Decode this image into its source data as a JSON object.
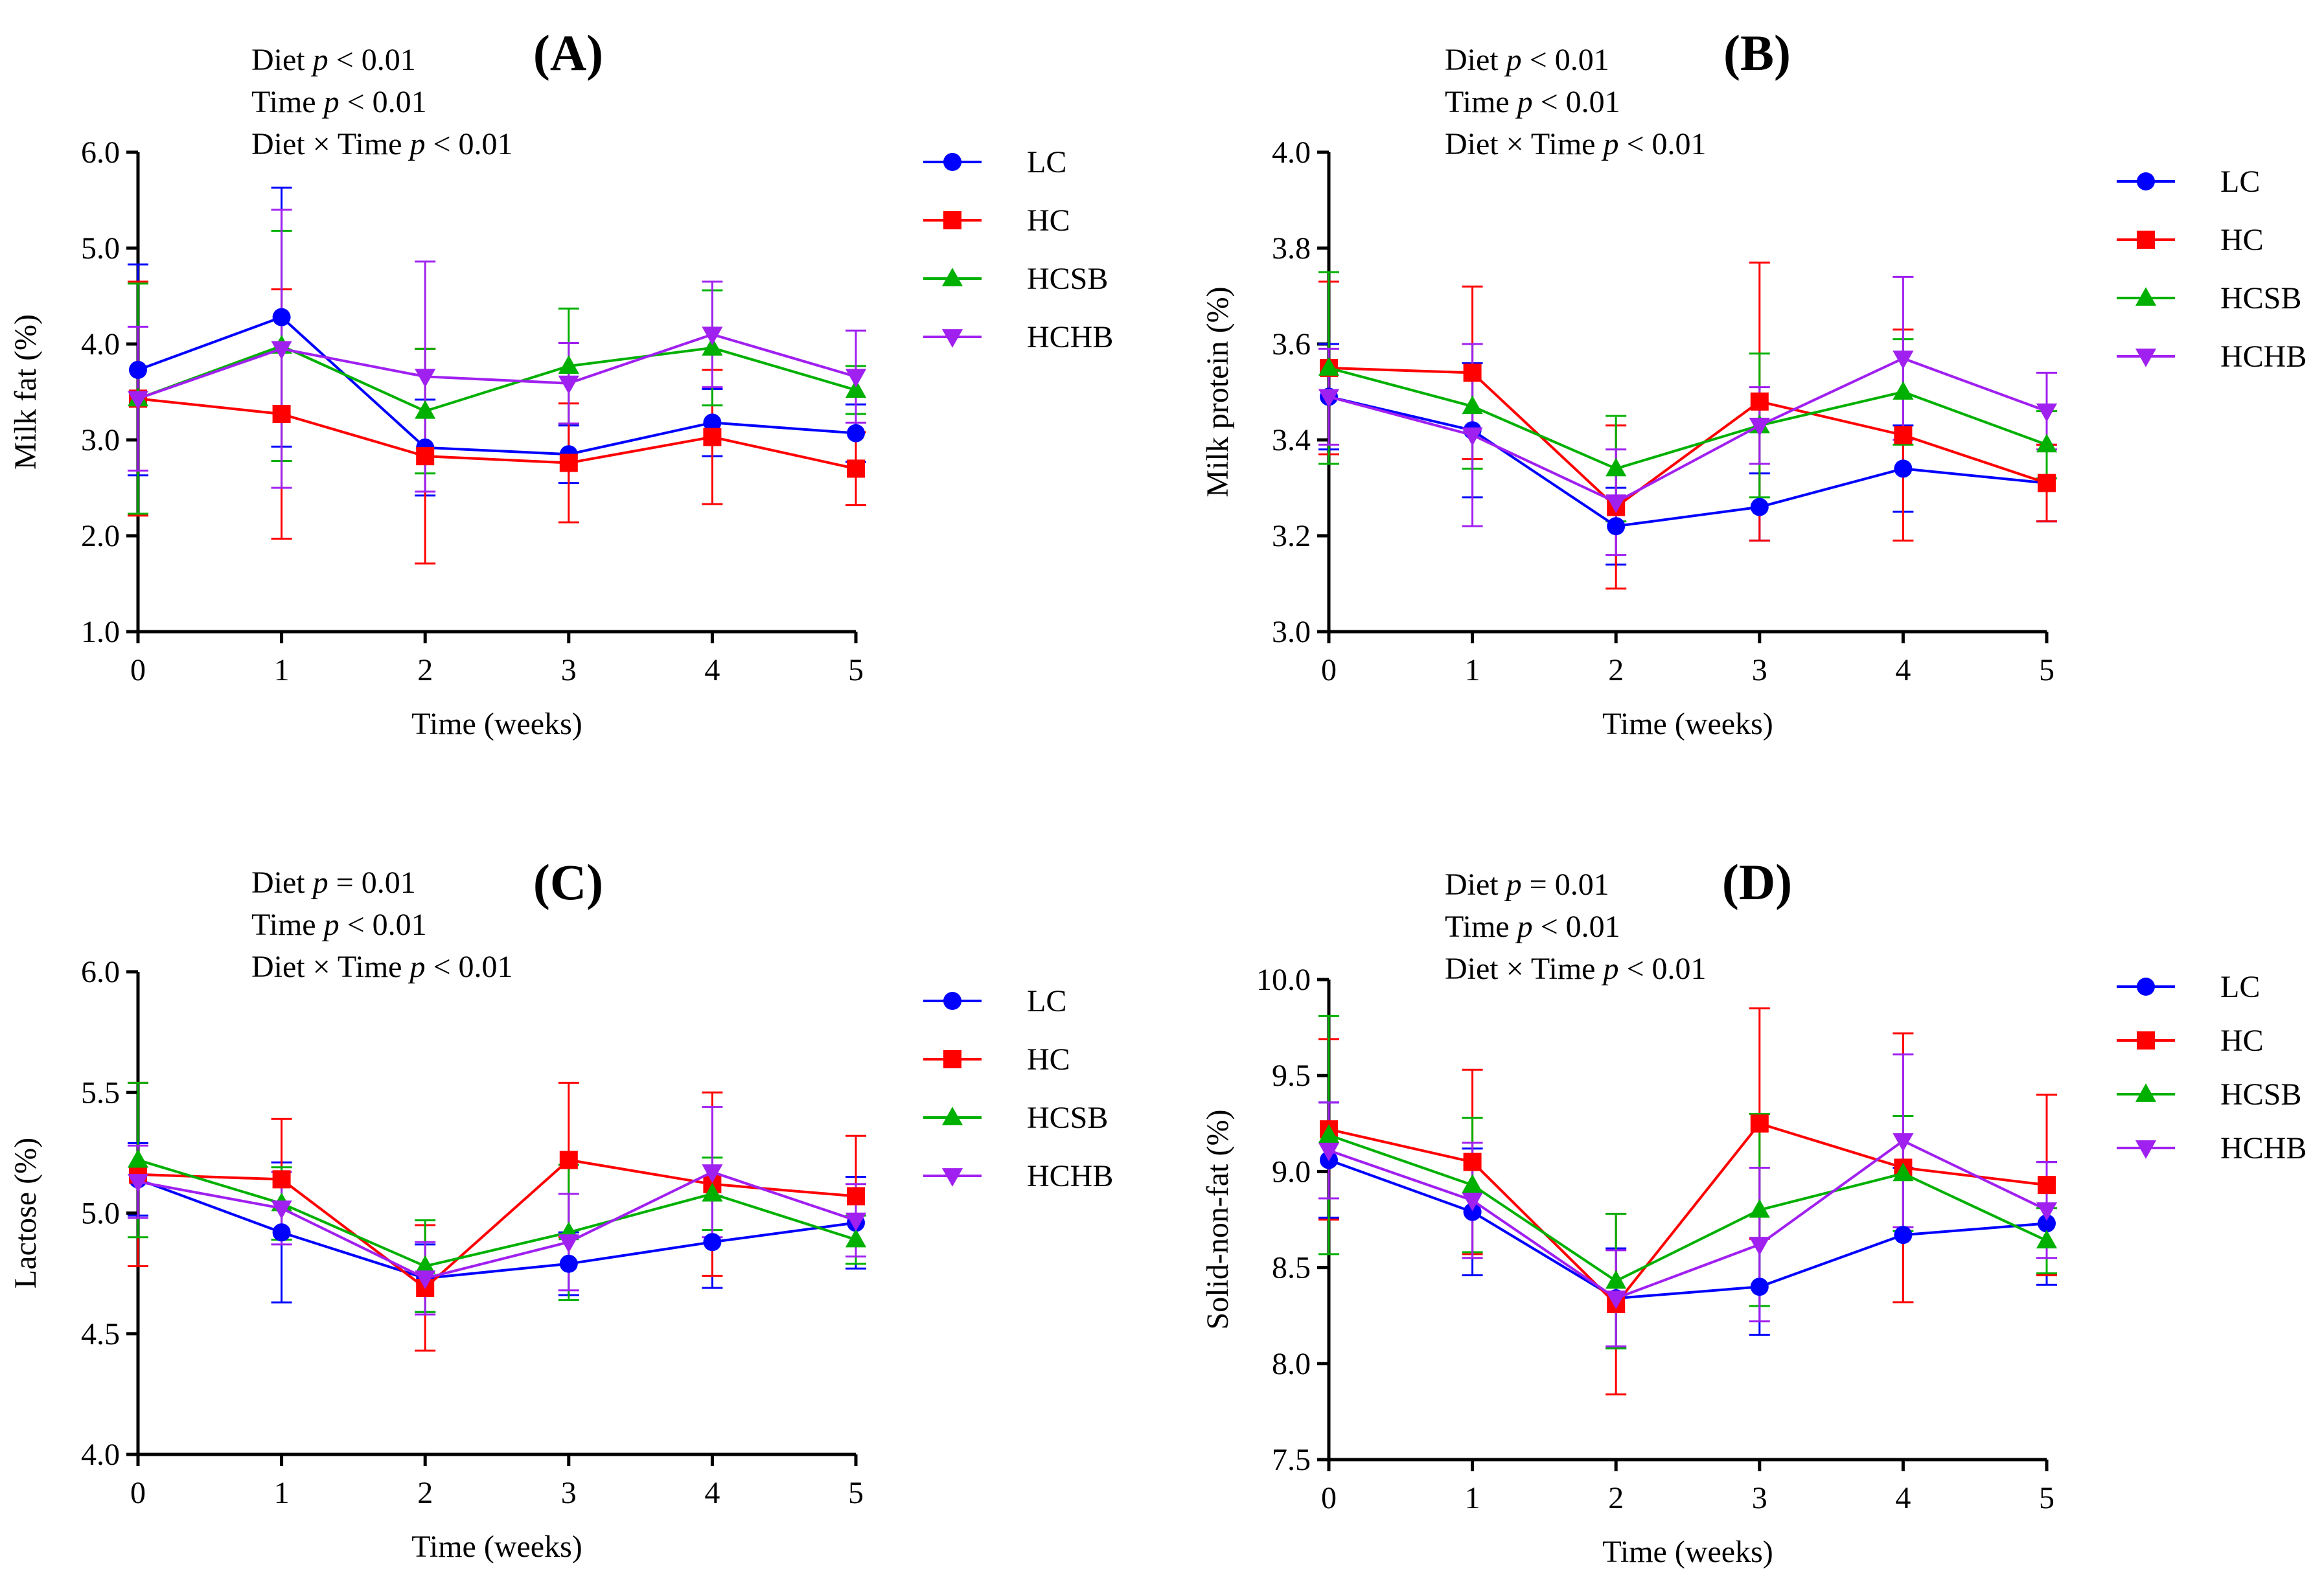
{
  "figure": {
    "colors": {
      "LC": "#0000ff",
      "HC": "#ff0000",
      "HCSB": "#00b000",
      "HCHB": "#a020f0"
    }
  },
  "chart_data": [
    {
      "panel": "(A)",
      "type": "line",
      "stats": [
        {
          "label": "Diet",
          "op": "< 0.01"
        },
        {
          "label": "Time",
          "op": "< 0.01"
        },
        {
          "label": "Diet × Time",
          "op": "< 0.01"
        }
      ],
      "xlabel": "Time (weeks)",
      "ylabel": "Milk fat (%)",
      "x": [
        0,
        1,
        2,
        3,
        4,
        5
      ],
      "xticks": [
        "0",
        "1",
        "2",
        "3",
        "4",
        "5"
      ],
      "ylim": [
        1.0,
        6.0
      ],
      "yticks": [
        "1.0",
        "2.0",
        "3.0",
        "4.0",
        "5.0",
        "6.0"
      ],
      "legend": [
        "LC",
        "HC",
        "HCSB",
        "HCHB"
      ],
      "series": [
        {
          "name": "LC",
          "marker": "circle",
          "values": [
            3.73,
            4.28,
            2.92,
            2.85,
            3.18,
            3.07
          ],
          "errors": [
            1.1,
            1.35,
            0.5,
            0.3,
            0.35,
            0.3
          ]
        },
        {
          "name": "HC",
          "marker": "square",
          "values": [
            3.43,
            3.27,
            2.83,
            2.76,
            3.03,
            2.7
          ],
          "errors": [
            1.22,
            1.3,
            1.12,
            0.62,
            0.7,
            0.38
          ]
        },
        {
          "name": "HCSB",
          "marker": "triangle-up",
          "values": [
            3.43,
            3.98,
            3.3,
            3.77,
            3.96,
            3.52
          ],
          "errors": [
            1.2,
            1.2,
            0.65,
            0.6,
            0.6,
            0.25
          ]
        },
        {
          "name": "HCHB",
          "marker": "triangle-down",
          "values": [
            3.43,
            3.95,
            3.66,
            3.59,
            4.1,
            3.66
          ],
          "errors": [
            0.75,
            1.45,
            1.2,
            0.42,
            0.55,
            0.48
          ]
        }
      ]
    },
    {
      "panel": "(B)",
      "type": "line",
      "stats": [
        {
          "label": "Diet",
          "op": "< 0.01"
        },
        {
          "label": "Time",
          "op": "< 0.01"
        },
        {
          "label": "Diet × Time",
          "op": "< 0.01"
        }
      ],
      "xlabel": "Time (weeks)",
      "ylabel": "Milk protein (%)",
      "x": [
        0,
        1,
        2,
        3,
        4,
        5
      ],
      "xticks": [
        "0",
        "1",
        "2",
        "3",
        "4",
        "5"
      ],
      "ylim": [
        3.0,
        4.0
      ],
      "yticks": [
        "3.0",
        "3.2",
        "3.4",
        "3.6",
        "3.8",
        "4.0"
      ],
      "legend": [
        "LC",
        "HC",
        "HCSB",
        "HCHB"
      ],
      "series": [
        {
          "name": "LC",
          "marker": "circle",
          "values": [
            3.49,
            3.42,
            3.22,
            3.26,
            3.34,
            3.31
          ],
          "errors": [
            0.11,
            0.14,
            0.08,
            0.07,
            0.09,
            0.08
          ]
        },
        {
          "name": "HC",
          "marker": "square",
          "values": [
            3.55,
            3.54,
            3.26,
            3.48,
            3.41,
            3.31
          ],
          "errors": [
            0.18,
            0.18,
            0.17,
            0.29,
            0.22,
            0.08
          ]
        },
        {
          "name": "HCSB",
          "marker": "triangle-up",
          "values": [
            3.55,
            3.47,
            3.34,
            3.43,
            3.5,
            3.39
          ],
          "errors": [
            0.2,
            0.13,
            0.11,
            0.15,
            0.11,
            0.07
          ]
        },
        {
          "name": "HCHB",
          "marker": "triangle-down",
          "values": [
            3.49,
            3.41,
            3.27,
            3.43,
            3.57,
            3.46
          ],
          "errors": [
            0.1,
            0.19,
            0.11,
            0.08,
            0.17,
            0.08
          ]
        }
      ]
    },
    {
      "panel": "(C)",
      "type": "line",
      "stats": [
        {
          "label": "Diet",
          "op": "= 0.01"
        },
        {
          "label": "Time",
          "op": "< 0.01"
        },
        {
          "label": "Diet × Time",
          "op": "< 0.01"
        }
      ],
      "xlabel": "Time (weeks)",
      "ylabel": "Lactose (%)",
      "x": [
        0,
        1,
        2,
        3,
        4,
        5
      ],
      "xticks": [
        "0",
        "1",
        "2",
        "3",
        "4",
        "5"
      ],
      "ylim": [
        4.0,
        6.0
      ],
      "yticks": [
        "4.0",
        "4.5",
        "5.0",
        "5.5",
        "6.0"
      ],
      "legend": [
        "LC",
        "HC",
        "HCSB",
        "HCHB"
      ],
      "series": [
        {
          "name": "LC",
          "marker": "circle",
          "values": [
            5.14,
            4.92,
            4.73,
            4.79,
            4.88,
            4.96
          ],
          "errors": [
            0.15,
            0.29,
            0.14,
            0.13,
            0.19,
            0.19
          ]
        },
        {
          "name": "HC",
          "marker": "square",
          "values": [
            5.16,
            5.14,
            4.69,
            5.22,
            5.12,
            5.07
          ],
          "errors": [
            0.38,
            0.25,
            0.26,
            0.32,
            0.38,
            0.25
          ]
        },
        {
          "name": "HCSB",
          "marker": "triangle-up",
          "values": [
            5.22,
            5.04,
            4.78,
            4.92,
            5.08,
            4.89
          ],
          "errors": [
            0.32,
            0.15,
            0.19,
            0.28,
            0.15,
            0.1
          ]
        },
        {
          "name": "HCHB",
          "marker": "triangle-down",
          "values": [
            5.13,
            5.02,
            4.73,
            4.88,
            5.17,
            4.97
          ],
          "errors": [
            0.15,
            0.15,
            0.15,
            0.2,
            0.27,
            0.15
          ]
        }
      ]
    },
    {
      "panel": "(D)",
      "type": "line",
      "stats": [
        {
          "label": "Diet",
          "op": "= 0.01"
        },
        {
          "label": "Time",
          "op": "< 0.01"
        },
        {
          "label": "Diet × Time",
          "op": "< 0.01"
        }
      ],
      "xlabel": "Time (weeks)",
      "ylabel": "Solid-non-fat (%)",
      "x": [
        0,
        1,
        2,
        3,
        4,
        5
      ],
      "xticks": [
        "0",
        "1",
        "2",
        "3",
        "4",
        "5"
      ],
      "ylim": [
        7.5,
        10.0
      ],
      "yticks": [
        "7.5",
        "8.0",
        "8.5",
        "9.0",
        "9.5",
        "10.0"
      ],
      "legend": [
        "LC",
        "HC",
        "HCSB",
        "HCHB"
      ],
      "series": [
        {
          "name": "LC",
          "marker": "circle",
          "values": [
            9.06,
            8.79,
            8.34,
            8.4,
            8.67,
            8.73
          ],
          "errors": [
            0.3,
            0.33,
            0.26,
            0.25,
            0.35,
            0.32
          ]
        },
        {
          "name": "HC",
          "marker": "square",
          "values": [
            9.22,
            9.05,
            8.31,
            9.25,
            9.02,
            8.93
          ],
          "errors": [
            0.47,
            0.48,
            0.47,
            0.6,
            0.7,
            0.47
          ]
        },
        {
          "name": "HCSB",
          "marker": "triangle-up",
          "values": [
            9.19,
            8.93,
            8.43,
            8.8,
            8.99,
            8.64
          ],
          "errors": [
            0.62,
            0.35,
            0.35,
            0.5,
            0.3,
            0.17
          ]
        },
        {
          "name": "HCHB",
          "marker": "triangle-down",
          "values": [
            9.11,
            8.85,
            8.34,
            8.62,
            9.16,
            8.8
          ],
          "errors": [
            0.25,
            0.3,
            0.25,
            0.4,
            0.45,
            0.25
          ]
        }
      ]
    }
  ]
}
